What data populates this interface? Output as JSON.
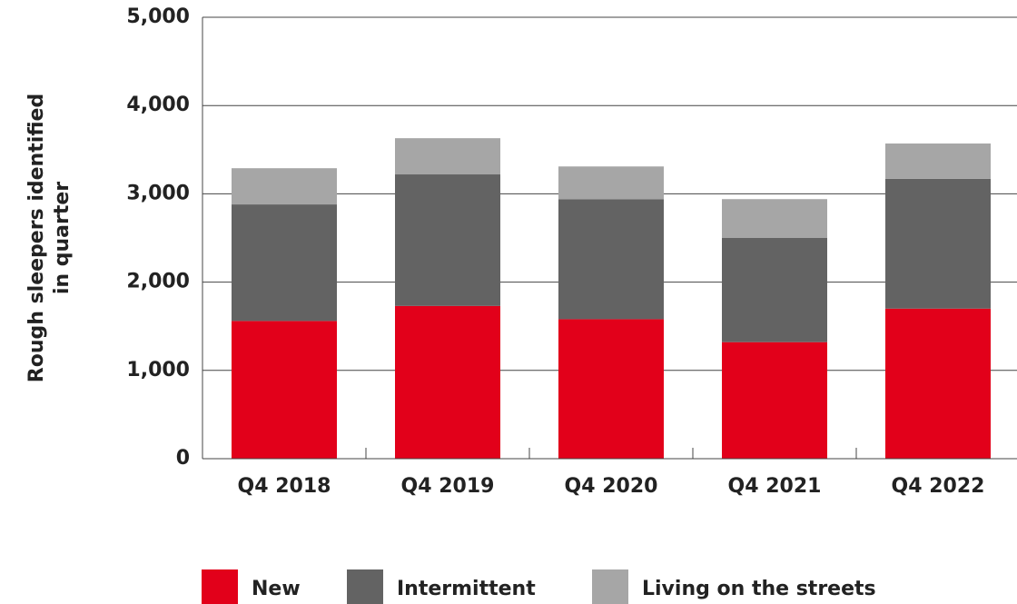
{
  "chart_data": {
    "type": "stacked_bar",
    "y_label": [
      "Rough sleepers identified",
      "in quarter"
    ],
    "categories": [
      "Q4 2018",
      "Q4 2019",
      "Q4 2020",
      "Q4 2021",
      "Q4 2022"
    ],
    "series": [
      {
        "name": "New",
        "color": "#e2001a",
        "values": [
          1560,
          1730,
          1580,
          1320,
          1700
        ]
      },
      {
        "name": "Intermittent",
        "color": "#636363",
        "values": [
          1320,
          1490,
          1360,
          1180,
          1470
        ]
      },
      {
        "name": "Living on the streets",
        "color": "#a6a6a6",
        "values": [
          410,
          410,
          370,
          440,
          400
        ]
      }
    ],
    "ylim": [
      0,
      5000
    ],
    "yticks": [
      0,
      {
        "value": 1000,
        "label": "1,000"
      },
      {
        "value": 2000,
        "label": "2,000"
      },
      {
        "value": 3000,
        "label": "3,000"
      },
      {
        "value": 4000,
        "label": "4,000"
      },
      {
        "value": 5000,
        "label": "5,000"
      }
    ],
    "grid": true,
    "legend": "bottom"
  }
}
